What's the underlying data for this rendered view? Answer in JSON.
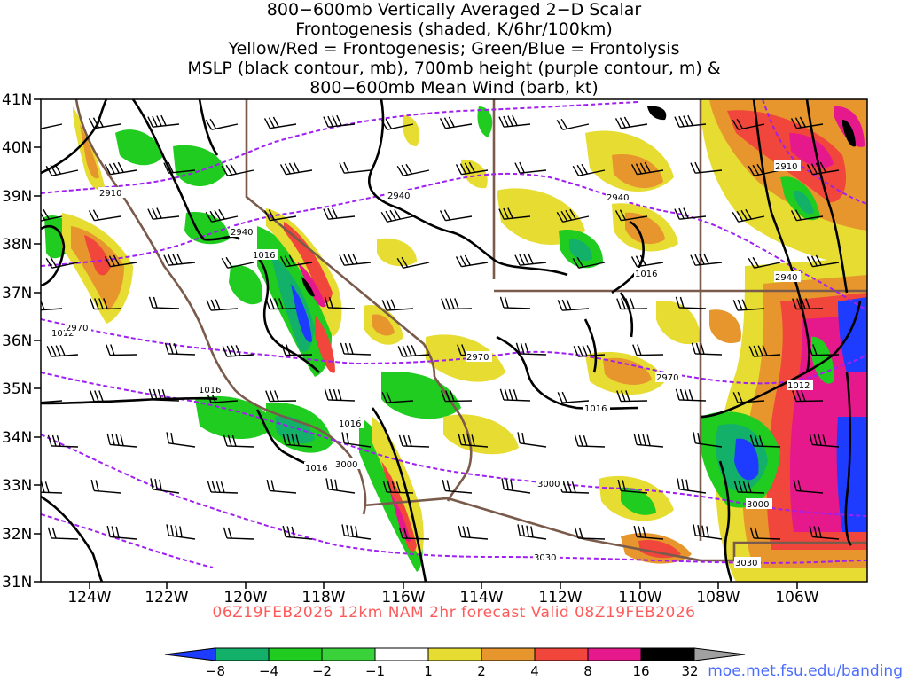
{
  "title": {
    "lines": [
      "800−600mb Vertically Averaged 2−D Scalar",
      "Frontogenesis (shaded, K/6hr/100km)",
      "Yellow/Red = Frontogenesis;  Green/Blue = Frontolysis",
      "MSLP (black contour, mb), 700mb height (purple contour, m) &",
      "800−600mb Mean Wind (barb, kt)"
    ]
  },
  "map": {
    "lat_labels": [
      "41N",
      "40N",
      "39N",
      "38N",
      "37N",
      "36N",
      "35N",
      "34N",
      "33N",
      "32N",
      "31N"
    ],
    "lon_labels": [
      "124W",
      "122W",
      "120W",
      "118W",
      "116W",
      "114W",
      "112W",
      "110W",
      "108W",
      "106W"
    ],
    "pressure_labels": [
      "1016",
      "1016",
      "1016",
      "1016",
      "1016",
      "1016",
      "1012",
      "1012"
    ],
    "height_labels": [
      "2910",
      "2910",
      "2940",
      "2940",
      "2940",
      "2940",
      "2970",
      "2970",
      "2970",
      "3000",
      "3000",
      "3000",
      "3030",
      "3030"
    ],
    "colors": {
      "blue": "#1e3cff",
      "green": "#1fcc1f",
      "mint": "#13b06a",
      "yellow": "#e6dc32",
      "orange": "#e6962d",
      "red": "#f0463c",
      "magenta": "#e6198c",
      "black": "#000000",
      "state_border": "#7a5a4a",
      "purple": "#a020f0"
    }
  },
  "colorbar": {
    "ticks": [
      "−8",
      "−4",
      "−2",
      "−1",
      "1",
      "2",
      "4",
      "8",
      "16",
      "32"
    ],
    "colors": [
      "#1e3cff",
      "#13b06a",
      "#1fcc1f",
      "#3ad23a",
      "#ffffff",
      "#e6dc32",
      "#e6962d",
      "#f0463c",
      "#e6198c",
      "#000000",
      "#a0a0a0"
    ]
  },
  "footer": "06Z19FEB2026  12km NAM 2hr forecast Valid 08Z19FEB2026",
  "credit": "moe.met.fsu.edu/banding"
}
